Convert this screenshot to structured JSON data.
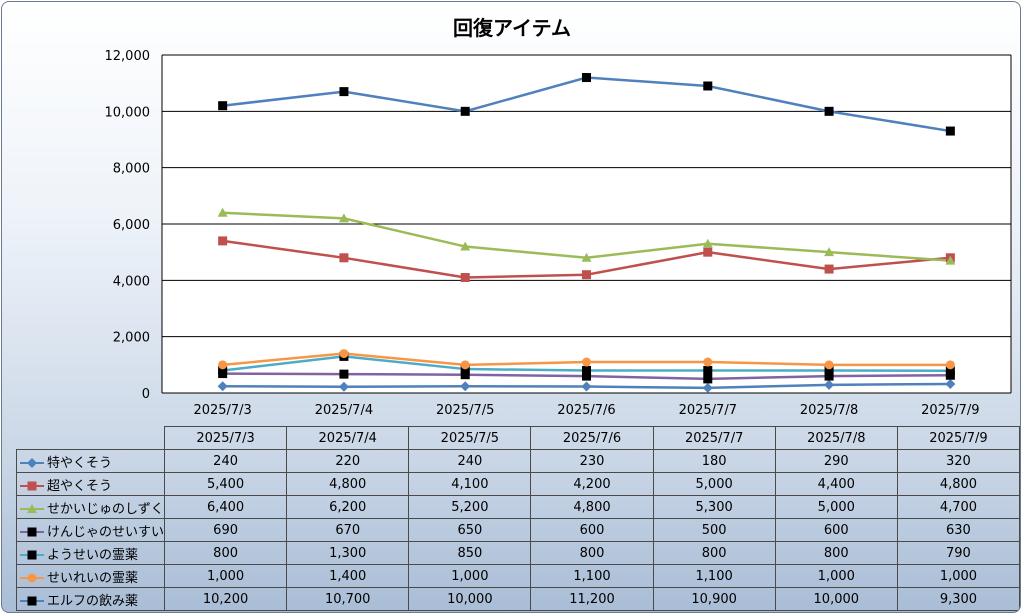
{
  "chart_data": {
    "type": "line",
    "title": "回復アイテム",
    "categories": [
      "2025/7/3",
      "2025/7/4",
      "2025/7/5",
      "2025/7/6",
      "2025/7/7",
      "2025/7/8",
      "2025/7/9"
    ],
    "ylim": [
      0,
      12000
    ],
    "yticks": [
      "0",
      "2,000",
      "4,000",
      "6,000",
      "8,000",
      "10,000",
      "12,000"
    ],
    "grid": true,
    "legend": "data-table",
    "series": [
      {
        "name": "特やくそう",
        "values": [
          240,
          220,
          240,
          230,
          180,
          290,
          320
        ],
        "labels": [
          "240",
          "220",
          "240",
          "230",
          "180",
          "290",
          "320"
        ],
        "color": "#4f81bd",
        "marker": "diamond"
      },
      {
        "name": "超やくそう",
        "values": [
          5400,
          4800,
          4100,
          4200,
          5000,
          4400,
          4800
        ],
        "labels": [
          "5,400",
          "4,800",
          "4,100",
          "4,200",
          "5,000",
          "4,400",
          "4,800"
        ],
        "color": "#c0504d",
        "marker": "square"
      },
      {
        "name": "せかいじゅのしずく",
        "values": [
          6400,
          6200,
          5200,
          4800,
          5300,
          5000,
          4700
        ],
        "labels": [
          "6,400",
          "6,200",
          "5,200",
          "4,800",
          "5,300",
          "5,000",
          "4,700"
        ],
        "color": "#9bbb59",
        "marker": "triangle"
      },
      {
        "name": "けんじゃのせいすい",
        "values": [
          690,
          670,
          650,
          600,
          500,
          600,
          630
        ],
        "labels": [
          "690",
          "670",
          "650",
          "600",
          "500",
          "600",
          "630"
        ],
        "color": "#8064a2",
        "marker": "square-black"
      },
      {
        "name": "ようせいの霊薬",
        "values": [
          800,
          1300,
          850,
          800,
          800,
          800,
          790
        ],
        "labels": [
          "800",
          "1,300",
          "850",
          "800",
          "800",
          "800",
          "790"
        ],
        "color": "#4bacc6",
        "marker": "square-black"
      },
      {
        "name": "せいれいの霊薬",
        "values": [
          1000,
          1400,
          1000,
          1100,
          1100,
          1000,
          1000
        ],
        "labels": [
          "1,000",
          "1,400",
          "1,000",
          "1,100",
          "1,100",
          "1,000",
          "1,000"
        ],
        "color": "#f79646",
        "marker": "circle"
      },
      {
        "name": "エルフの飲み薬",
        "values": [
          10200,
          10700,
          10000,
          11200,
          10900,
          10000,
          9300
        ],
        "labels": [
          "10,200",
          "10,700",
          "10,000",
          "11,200",
          "10,900",
          "10,000",
          "9,300"
        ],
        "color": "#4f81bd",
        "marker": "square-black"
      }
    ]
  }
}
